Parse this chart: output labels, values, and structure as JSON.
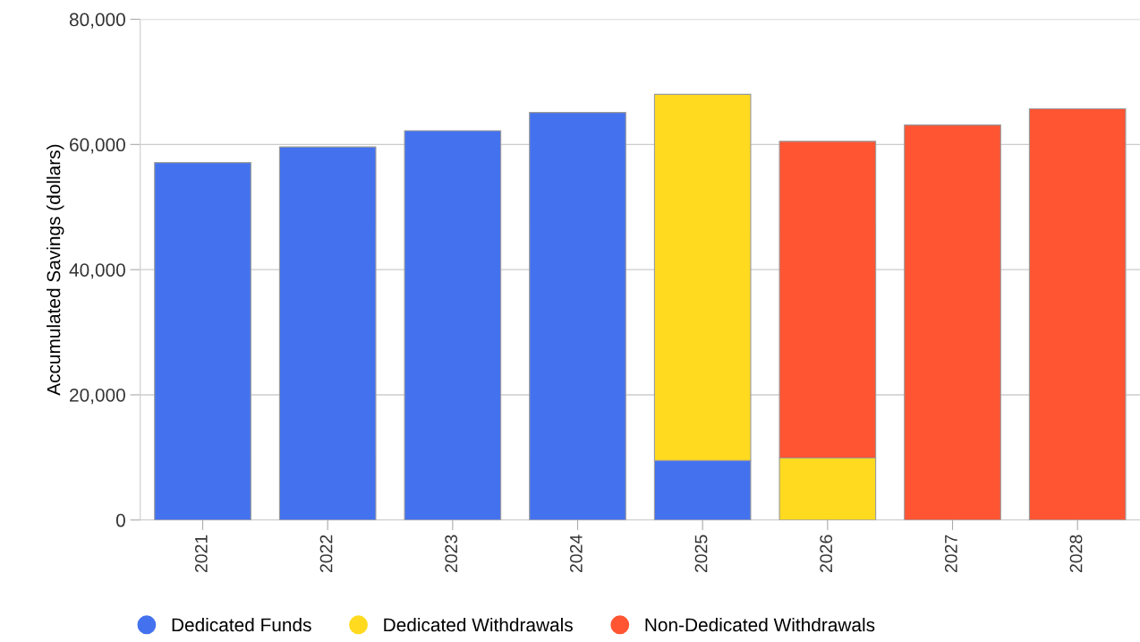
{
  "chart_data": {
    "type": "bar",
    "stacked": true,
    "ylabel": "Accumulated Savings (dollars)",
    "categories": [
      "2021",
      "2022",
      "2023",
      "2024",
      "2025",
      "2026",
      "2027",
      "2028"
    ],
    "series": [
      {
        "name": "Dedicated Funds",
        "color": "#4472ef",
        "values": [
          57100,
          59600,
          62200,
          65100,
          9500,
          0,
          0,
          0
        ]
      },
      {
        "name": "Dedicated Withdrawals",
        "color": "#ffda1f",
        "values": [
          0,
          0,
          0,
          0,
          58500,
          9900,
          0,
          0
        ]
      },
      {
        "name": "Non-Dedicated Withdrawals",
        "color": "#ff5533",
        "values": [
          0,
          0,
          0,
          0,
          0,
          50600,
          63100,
          65700
        ]
      }
    ],
    "ylim": [
      0,
      80000
    ],
    "yticks": [
      {
        "value": 0,
        "label": "0"
      },
      {
        "value": 20000,
        "label": "20,000"
      },
      {
        "value": 40000,
        "label": "40,000"
      },
      {
        "value": 60000,
        "label": "60,000"
      },
      {
        "value": 80000,
        "label": "80,000"
      }
    ],
    "grid": "y",
    "legend": "bottom"
  }
}
